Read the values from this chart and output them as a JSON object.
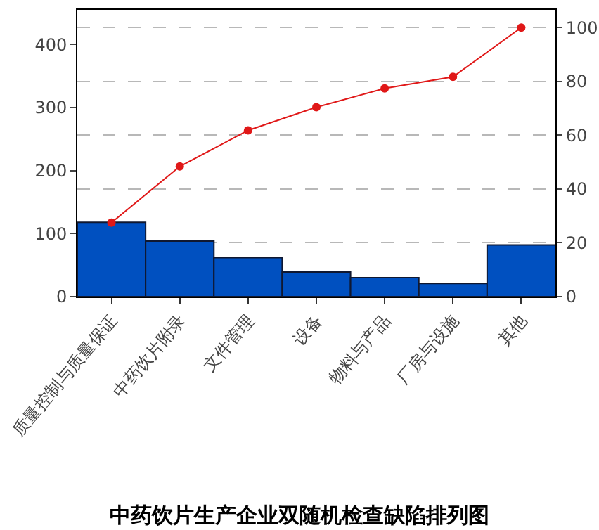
{
  "chart_data": {
    "type": "bar",
    "title": "中药饮片生产企业双随机检查缺陷排列图",
    "categories": [
      "质量控制与质量保证",
      "中药饮片附录",
      "文件管理",
      "设备",
      "物料与产品",
      "厂房与设施",
      "其他"
    ],
    "series": [
      {
        "color": "#0050c0",
        "values": [
          118,
          88,
          62,
          39,
          30,
          21,
          82
        ]
      },
      {
        "type": "line",
        "axis": "y2",
        "color": "#e01818",
        "marker": "circle",
        "values": [
          27.5,
          48.4,
          61.8,
          70.4,
          77.4,
          81.7,
          100
        ]
      }
    ],
    "ylim": [
      0,
      455
    ],
    "yticks": [
      0,
      100,
      200,
      300,
      400
    ],
    "y2lim": [
      0,
      106.6
    ],
    "y2ticks": [
      0,
      20,
      40,
      60,
      80,
      100
    ],
    "grid": true
  }
}
